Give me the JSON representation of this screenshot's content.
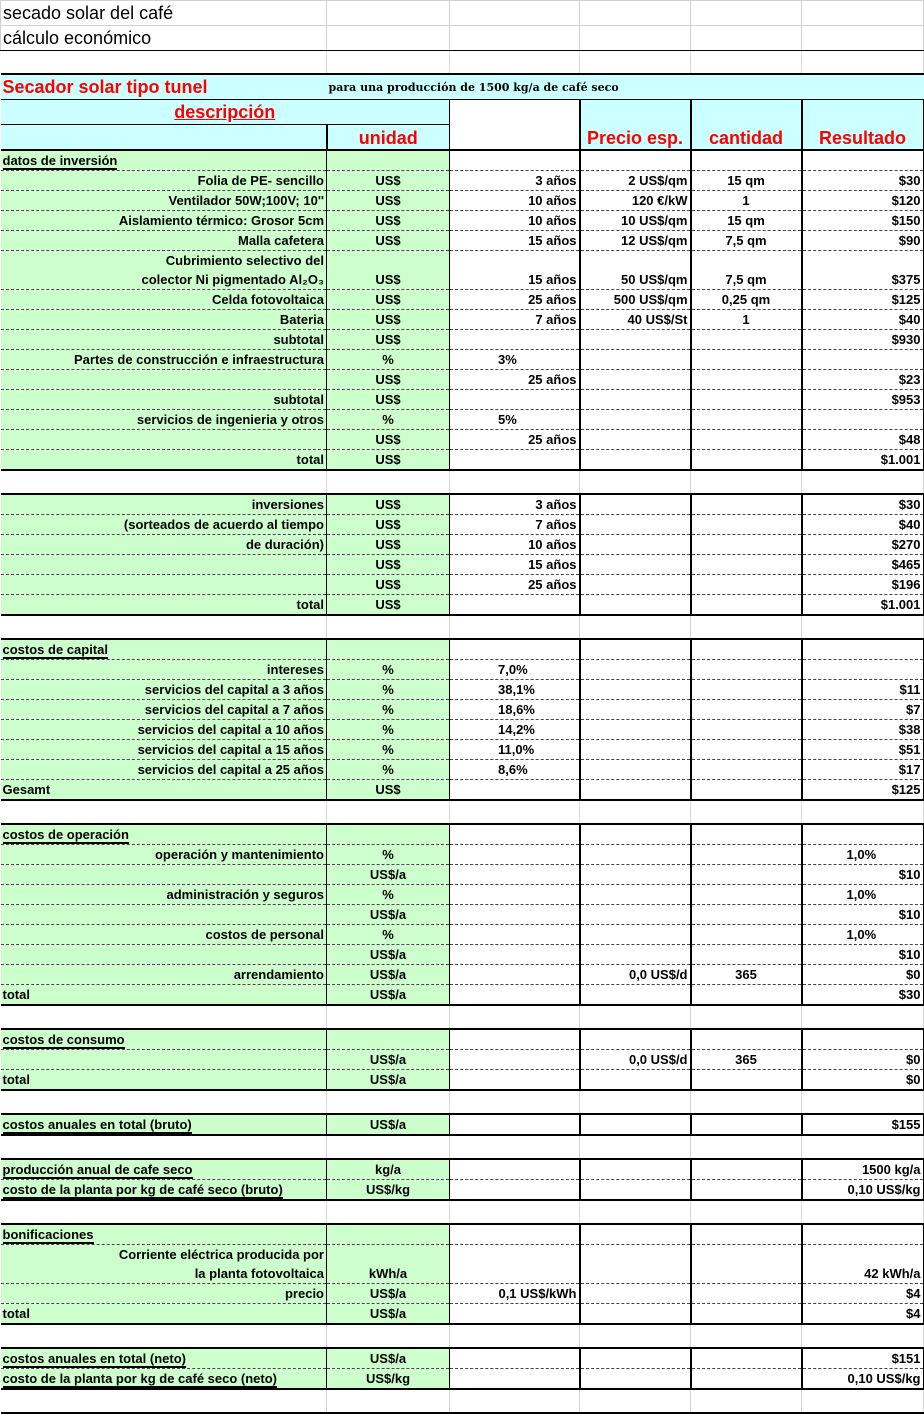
{
  "header": {
    "title": "secado solar del café",
    "subtitle": "cálculo económico",
    "banner_title": "Secador solar tipo tunel",
    "banner_note": "para una producción de 1500 kg/a de café seco",
    "col_descripcion": "descripción",
    "col_unidad": "unidad",
    "col_precio": "Precio esp.",
    "col_cantidad": "cantidad",
    "col_resultado": "Resultado"
  },
  "colors": {
    "green": "#ccffcc",
    "cyan": "#ccffff",
    "red": "#ff0000"
  },
  "rows": [
    {
      "kind": "head-first",
      "a": "datos de inversión"
    },
    {
      "kind": "item",
      "a": "Folia de PE- sencillo",
      "b": "US$",
      "c": "3 años",
      "d": "2 US$/qm",
      "e": "15 qm",
      "f": "$30"
    },
    {
      "kind": "item",
      "a": "Ventilador 50W;100V; 10''",
      "b": "US$",
      "c": "10 años",
      "d": "120 €/kW",
      "e": "1",
      "f": "$120"
    },
    {
      "kind": "item",
      "a": "Aislamiento térmico: Grosor 5cm",
      "b": "US$",
      "c": "10 años",
      "d": "10 US$/qm",
      "e": "15 qm",
      "f": "$150"
    },
    {
      "kind": "item",
      "a": "Malla cafetera",
      "b": "US$",
      "c": "15 años",
      "d": "12 US$/qm",
      "e": "7,5 qm",
      "f": "$90"
    },
    {
      "kind": "item-nb",
      "a": "Cubrimiento selectivo del"
    },
    {
      "kind": "item",
      "a": "colector Ni pigmentado Al₂O₃",
      "b": "US$",
      "c": "15 años",
      "d": "50 US$/qm",
      "e": "7,5 qm",
      "f": "$375"
    },
    {
      "kind": "item",
      "a": "Celda fotovoltaica",
      "b": "US$",
      "c": "25 años",
      "d": "500 US$/qm",
      "e": "0,25 qm",
      "f": "$125"
    },
    {
      "kind": "item",
      "a": "Bateria",
      "b": "US$",
      "c": "7 años",
      "d": "40 US$/St",
      "e": "1",
      "f": "$40"
    },
    {
      "kind": "item",
      "a": "subtotal",
      "b": "US$",
      "f": "$930"
    },
    {
      "kind": "item",
      "a": "Partes de construcción e infraestructura",
      "b": "%",
      "c": "3%"
    },
    {
      "kind": "item",
      "a": "",
      "b": "US$",
      "c": "25 años",
      "f": "$23"
    },
    {
      "kind": "item",
      "a": "subtotal",
      "b": "US$",
      "f": "$953"
    },
    {
      "kind": "item",
      "a": "servicios de ingenieria y otros",
      "b": "%",
      "c": "5%"
    },
    {
      "kind": "item",
      "a": "",
      "b": "US$",
      "c": "25 años",
      "f": "$48"
    },
    {
      "kind": "total",
      "a": "total",
      "b": "US$",
      "f": "$1.001"
    },
    {
      "kind": "blank"
    },
    {
      "kind": "item-first",
      "a": "inversiones",
      "b": "US$",
      "c": "3 años",
      "f": "$30"
    },
    {
      "kind": "item",
      "a": "(sorteados de acuerdo al tiempo",
      "b": "US$",
      "c": "7 años",
      "f": "$40"
    },
    {
      "kind": "item",
      "a": "de duración)",
      "b": "US$",
      "c": "10 años",
      "f": "$270"
    },
    {
      "kind": "item",
      "a": "",
      "b": "US$",
      "c": "15 años",
      "f": "$465"
    },
    {
      "kind": "item",
      "a": "",
      "b": "US$",
      "c": "25 años",
      "f": "$196"
    },
    {
      "kind": "total",
      "a": "total",
      "b": "US$",
      "f": "$1.001"
    },
    {
      "kind": "blank"
    },
    {
      "kind": "head-first",
      "a": "costos de capital"
    },
    {
      "kind": "item",
      "a": "intereses",
      "b": "%",
      "c": "7,0%"
    },
    {
      "kind": "item",
      "a": "servicios del capital a 3 años",
      "b": "%",
      "c": "38,1%",
      "f": "$11"
    },
    {
      "kind": "item",
      "a": "servicios del capital a 7 años",
      "b": "%",
      "c": "18,6%",
      "f": "$7"
    },
    {
      "kind": "item",
      "a": "servicios del capital a 10 años",
      "b": "%",
      "c": "14,2%",
      "f": "$38"
    },
    {
      "kind": "item",
      "a": "servicios del capital a 15 años",
      "b": "%",
      "c": "11,0%",
      "f": "$51"
    },
    {
      "kind": "item",
      "a": "servicios del capital a 25 años",
      "b": "%",
      "c": "8,6%",
      "f": "$17"
    },
    {
      "kind": "total-left",
      "a": "Gesamt",
      "b": "US$",
      "f": "$125"
    },
    {
      "kind": "blank"
    },
    {
      "kind": "head-first",
      "a": "costos de operación"
    },
    {
      "kind": "item",
      "a": "operación y mantenimiento",
      "b": "%",
      "f": "1,0%"
    },
    {
      "kind": "item",
      "a": "",
      "b": "US$/a",
      "f": "$10"
    },
    {
      "kind": "item",
      "a": "administración y seguros",
      "b": "%",
      "f": "1,0%"
    },
    {
      "kind": "item",
      "a": "",
      "b": "US$/a",
      "f": "$10"
    },
    {
      "kind": "item",
      "a": "costos de personal",
      "b": "%",
      "f": "1,0%"
    },
    {
      "kind": "item",
      "a": "",
      "b": "US$/a",
      "f": "$10"
    },
    {
      "kind": "item",
      "a": "arrendamiento",
      "b": "US$/a",
      "d": "0,0 US$/d",
      "e": "365",
      "f": "$0"
    },
    {
      "kind": "total-left",
      "a": "total",
      "b": "US$/a",
      "f": "$30"
    },
    {
      "kind": "blank"
    },
    {
      "kind": "head-first",
      "a": "costos de consumo"
    },
    {
      "kind": "item",
      "a": "",
      "b": "US$/a",
      "d": "0,0 US$/d",
      "e": "365",
      "f": "$0"
    },
    {
      "kind": "total-left",
      "a": "total",
      "b": "US$/a",
      "f": "$0"
    },
    {
      "kind": "blank"
    },
    {
      "kind": "head-single",
      "a": "costos anuales en total (bruto)",
      "b": "US$/a",
      "f": "$155"
    },
    {
      "kind": "blank"
    },
    {
      "kind": "head-first-data",
      "a": "producción anual de cafe seco",
      "b": "kg/a",
      "f": "1500 kg/a"
    },
    {
      "kind": "head-last",
      "a": "costo de la planta por kg de café seco (bruto)",
      "b": "US$/kg",
      "f": "0,10 US$/kg"
    },
    {
      "kind": "blank"
    },
    {
      "kind": "head-first",
      "a": "bonificaciones"
    },
    {
      "kind": "item-nb",
      "a": "Corriente eléctrica producida por"
    },
    {
      "kind": "item",
      "a": "la planta fotovoltaica",
      "b": "kWh/a",
      "f": "42 kWh/a"
    },
    {
      "kind": "item",
      "a": "precio",
      "b": "US$/a",
      "c": "0,1 US$/kWh",
      "f": "$4"
    },
    {
      "kind": "total-left",
      "a": "total",
      "b": "US$/a",
      "f": "$4"
    },
    {
      "kind": "blank"
    },
    {
      "kind": "head-first-data",
      "a": "costos anuales en total (neto)",
      "b": "US$/a",
      "f": "$151"
    },
    {
      "kind": "head-last",
      "a": "costo de la planta por kg de café seco (neto)",
      "b": "US$/kg",
      "f": "0,10 US$/kg"
    },
    {
      "kind": "blank"
    }
  ]
}
